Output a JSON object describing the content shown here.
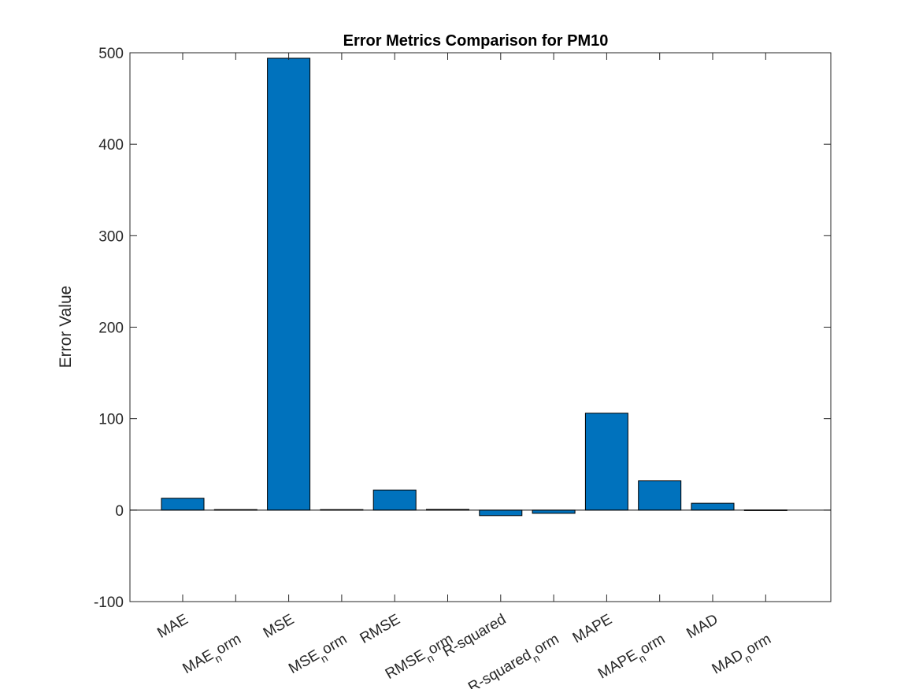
{
  "colors": {
    "bar": "#0072BD",
    "axis": "#262626",
    "background": "#ffffff"
  },
  "chart_data": {
    "type": "bar",
    "title": "Error Metrics Comparison for PM10",
    "xlabel": "",
    "ylabel": "Error Value",
    "ylim": [
      -100,
      500
    ],
    "yticks": [
      -100,
      0,
      100,
      200,
      300,
      400,
      500
    ],
    "grid": false,
    "categories": [
      {
        "main": "MAE",
        "sub": ""
      },
      {
        "main": "MAE",
        "sub": "n",
        "tail": "orm"
      },
      {
        "main": "MSE",
        "sub": ""
      },
      {
        "main": "MSE",
        "sub": "n",
        "tail": "orm"
      },
      {
        "main": "RMSE",
        "sub": ""
      },
      {
        "main": "RMSE",
        "sub": "n",
        "tail": "orm"
      },
      {
        "main": "R-squared",
        "sub": ""
      },
      {
        "main": "R-squared",
        "sub": "n",
        "tail": "orm"
      },
      {
        "main": "MAPE",
        "sub": ""
      },
      {
        "main": "MAPE",
        "sub": "n",
        "tail": "orm"
      },
      {
        "main": "MAD",
        "sub": ""
      },
      {
        "main": "MAD",
        "sub": "n",
        "tail": "orm"
      }
    ],
    "values": [
      13,
      0.6,
      494,
      0.6,
      22,
      0.8,
      -6,
      -3.5,
      106,
      32,
      7.5,
      0.2
    ]
  }
}
